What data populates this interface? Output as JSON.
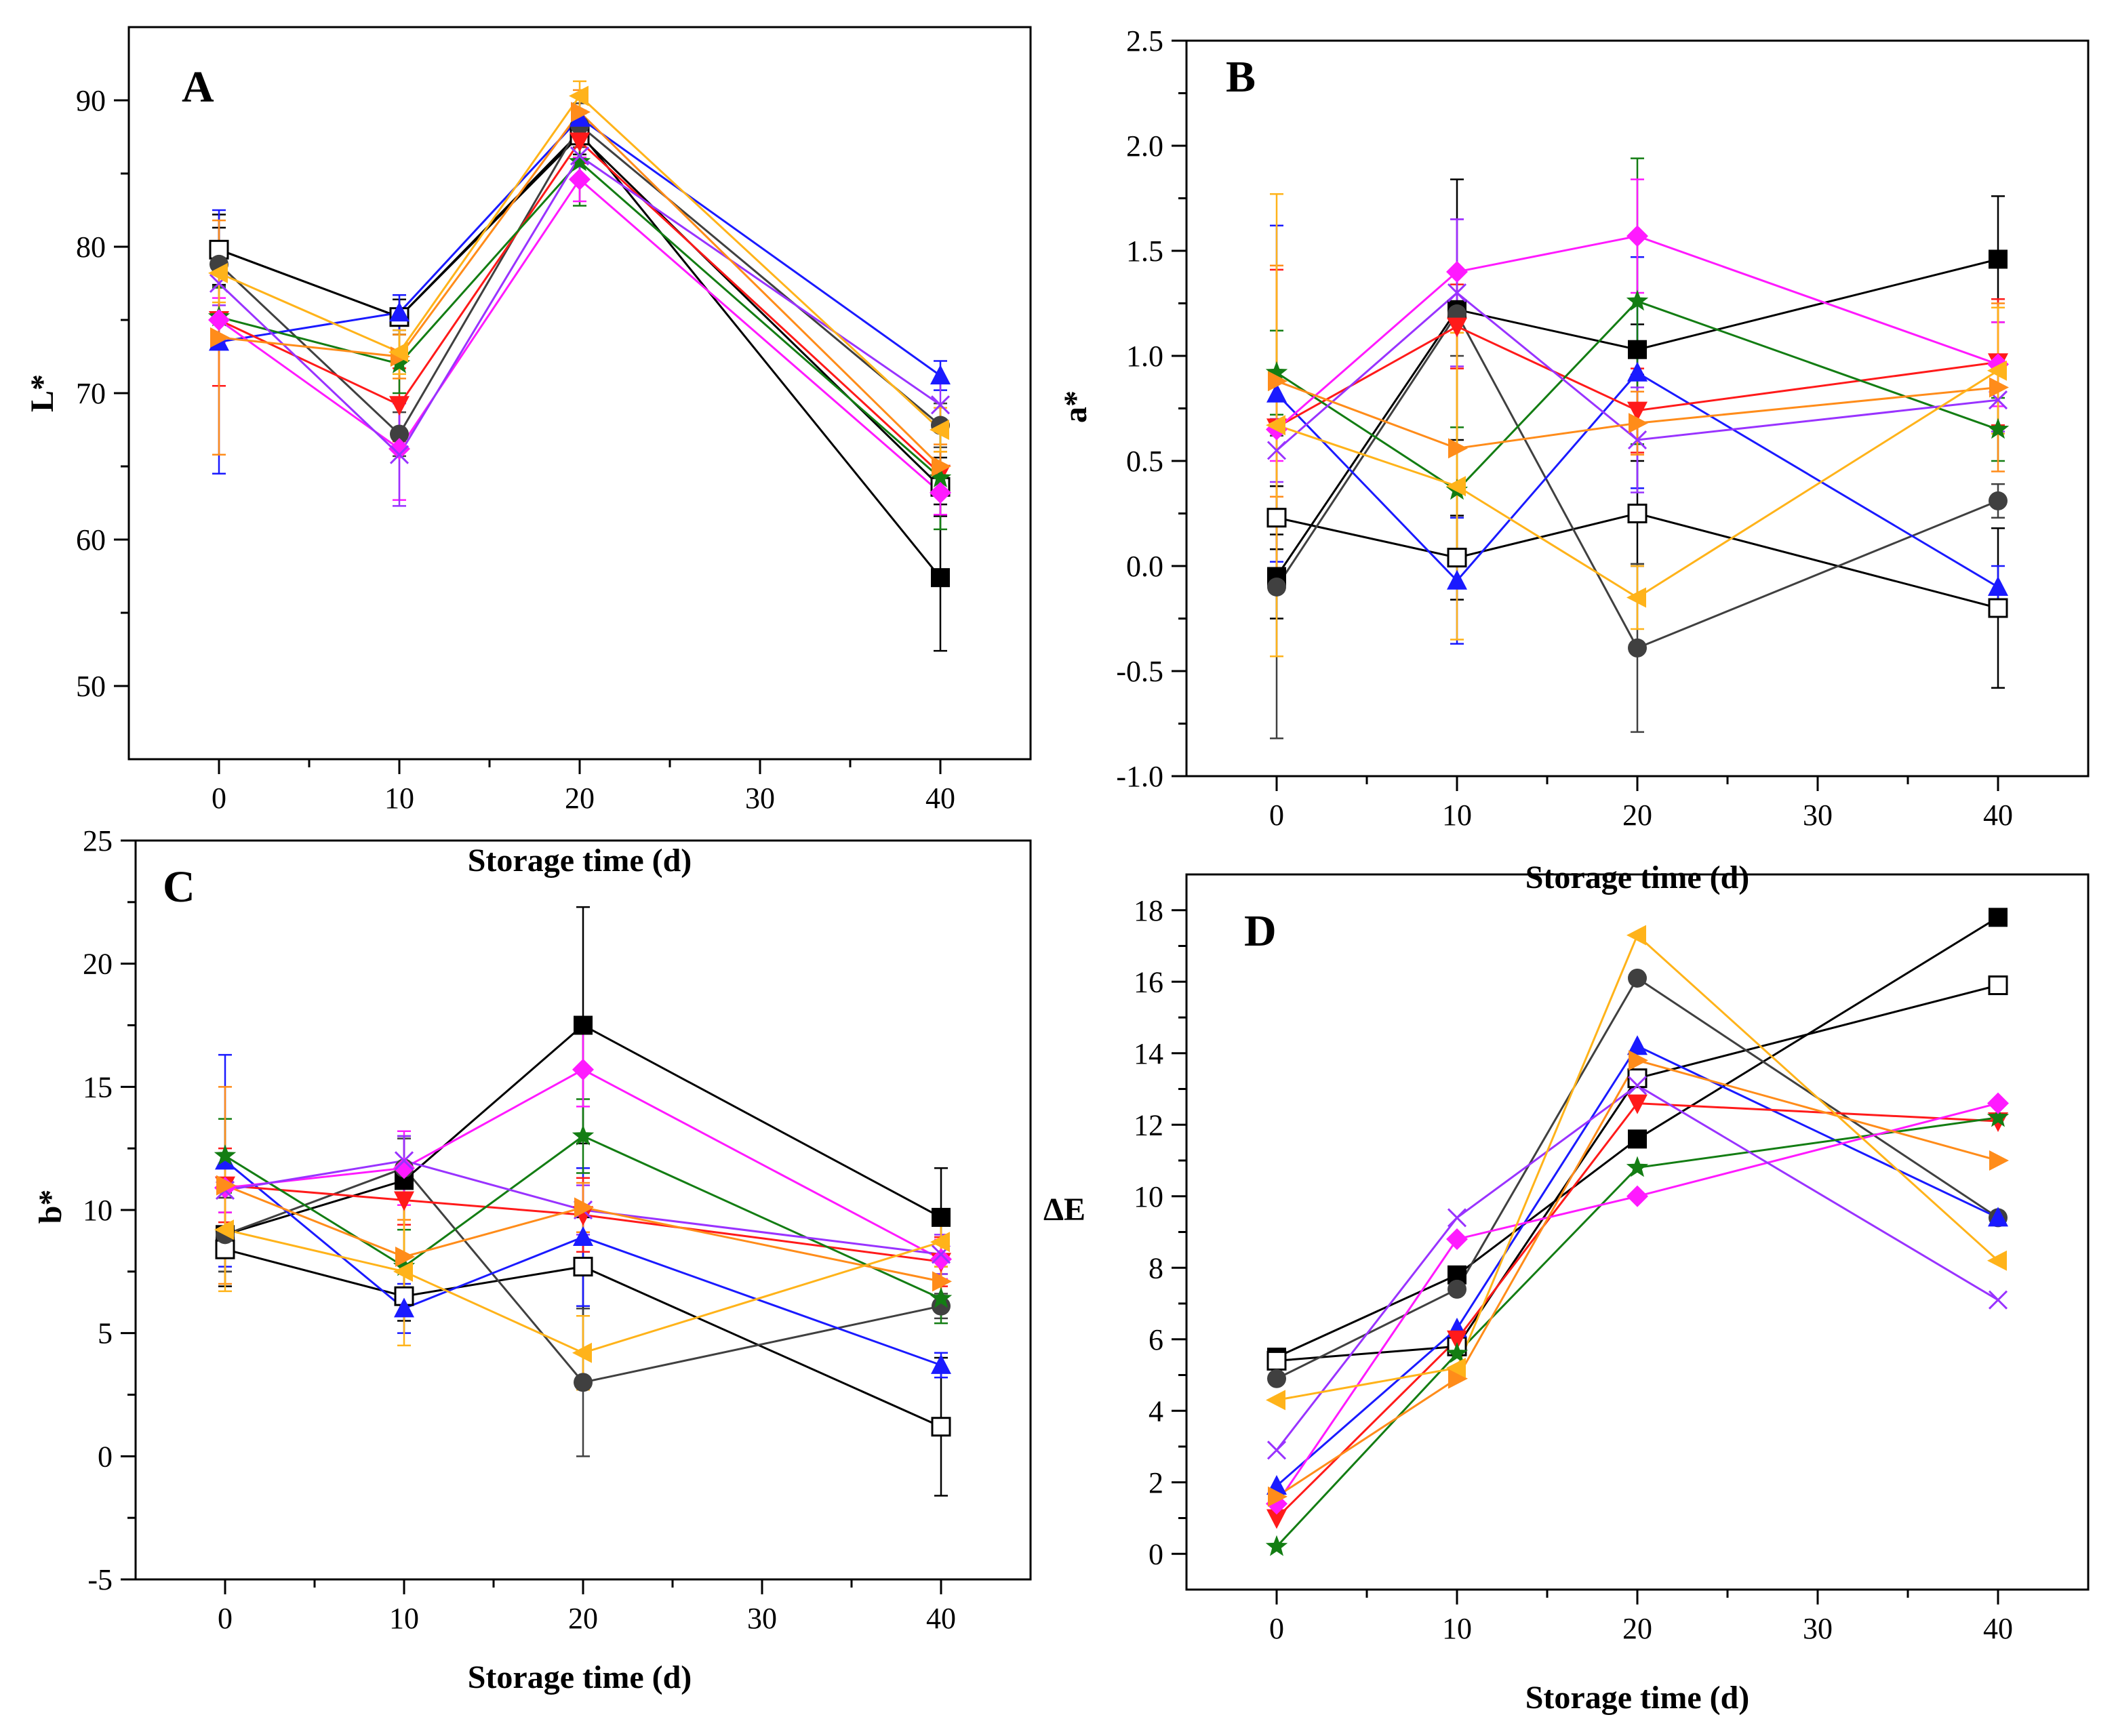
{
  "figure": {
    "colors": {
      "black": "#000000",
      "blue": "#1a1aff",
      "red": "#ff1a1a",
      "green": "#137d13",
      "orange": "#ff8c1a",
      "gold": "#ffb31a",
      "magenta": "#ff1aff",
      "purple": "#9933ff",
      "darkgray": "#404040"
    }
  },
  "chart_data": [
    {
      "panel": "A",
      "type": "line",
      "title": "",
      "xlabel": "Storage time (d)",
      "ylabel": "L*",
      "x": [
        0,
        10,
        20,
        40
      ],
      "xlim": [
        -5,
        45
      ],
      "ylim": [
        45,
        95
      ],
      "xticks": [
        "0",
        "10",
        "20",
        "30",
        "40"
      ],
      "yticks": [
        "50",
        "60",
        "70",
        "80",
        "90"
      ],
      "series": [
        {
          "name": "black-square",
          "color": "black",
          "marker": "square",
          "values": [
            79.8,
            75.2,
            87.8,
            57.4
          ],
          "errors": [
            2.4,
            1.2,
            1.5,
            5.0
          ]
        },
        {
          "name": "open-square",
          "color": "black",
          "marker": "open-square",
          "values": [
            79.8,
            75.2,
            87.6,
            63.6
          ],
          "errors": [
            1.5,
            1.2,
            1.5,
            2.0
          ]
        },
        {
          "name": "dark-circle",
          "color": "darkgray",
          "marker": "circle",
          "values": [
            78.8,
            67.2,
            88.3,
            67.8
          ],
          "errors": [
            1.5,
            1.5,
            1.5,
            1.5
          ]
        },
        {
          "name": "blue-triangle",
          "color": "blue",
          "marker": "triangle",
          "values": [
            73.5,
            75.5,
            88.8,
            71.2
          ],
          "errors": [
            9.0,
            1.2,
            1.5,
            1.0
          ]
        },
        {
          "name": "red-triangle-down",
          "color": "red",
          "marker": "triangle-down",
          "values": [
            75.0,
            69.2,
            87.2,
            64.5
          ],
          "errors": [
            4.5,
            2.5,
            1.5,
            1.5
          ]
        },
        {
          "name": "green-star",
          "color": "green",
          "marker": "star",
          "values": [
            75.2,
            72.0,
            85.8,
            64.2
          ],
          "errors": [
            2.0,
            2.0,
            3.0,
            3.5
          ]
        },
        {
          "name": "magenta-diamond",
          "color": "magenta",
          "marker": "diamond",
          "values": [
            75.0,
            66.2,
            84.6,
            63.2
          ],
          "errors": [
            1.5,
            3.5,
            1.5,
            1.5
          ]
        },
        {
          "name": "purple-cross",
          "color": "purple",
          "marker": "x",
          "values": [
            77.5,
            65.8,
            86.2,
            69.2
          ],
          "errors": [
            1.5,
            3.5,
            1.5,
            1.5
          ]
        },
        {
          "name": "orange-triangle-right",
          "color": "orange",
          "marker": "triangle-right",
          "values": [
            73.8,
            72.5,
            89.2,
            65.0
          ],
          "errors": [
            8.0,
            1.5,
            1.5,
            1.5
          ]
        },
        {
          "name": "gold-triangle-left",
          "color": "gold",
          "marker": "triangle-left",
          "values": [
            78.2,
            72.8,
            90.3,
            67.5
          ],
          "errors": [
            2.0,
            1.5,
            1.0,
            1.5
          ]
        }
      ]
    },
    {
      "panel": "B",
      "type": "line",
      "title": "",
      "xlabel": "Storage time (d)",
      "ylabel": "a*",
      "x": [
        0,
        10,
        20,
        40
      ],
      "xlim": [
        -5,
        45
      ],
      "ylim": [
        -1.0,
        2.5
      ],
      "xticks": [
        "0",
        "10",
        "20",
        "30",
        "40"
      ],
      "yticks": [
        "-1.0",
        "-0.5",
        "0.0",
        "0.5",
        "1.0",
        "1.5",
        "2.0",
        "2.5"
      ],
      "series": [
        {
          "name": "black-square",
          "color": "black",
          "marker": "square",
          "values": [
            -0.05,
            1.22,
            1.03,
            1.46
          ],
          "errors": [
            0.2,
            0.62,
            0.12,
            0.3
          ]
        },
        {
          "name": "open-square",
          "color": "black",
          "marker": "open-square",
          "values": [
            0.23,
            0.04,
            0.25,
            -0.2
          ],
          "errors": [
            0.15,
            0.2,
            0.25,
            0.38
          ]
        },
        {
          "name": "dark-circle",
          "color": "darkgray",
          "marker": "circle",
          "values": [
            -0.1,
            1.2,
            -0.39,
            0.31
          ],
          "errors": [
            0.72,
            0.2,
            0.4,
            0.08
          ]
        },
        {
          "name": "blue-triangle",
          "color": "blue",
          "marker": "triangle",
          "values": [
            0.82,
            -0.07,
            0.92,
            -0.1
          ],
          "errors": [
            0.8,
            0.3,
            0.55,
            0.1
          ]
        },
        {
          "name": "red-triangle-down",
          "color": "red",
          "marker": "triangle-down",
          "values": [
            0.66,
            1.14,
            0.74,
            0.97
          ],
          "errors": [
            0.75,
            0.2,
            0.2,
            0.3
          ]
        },
        {
          "name": "green-star",
          "color": "green",
          "marker": "star",
          "values": [
            0.92,
            0.36,
            1.26,
            0.65
          ],
          "errors": [
            0.2,
            0.3,
            0.68,
            0.15
          ]
        },
        {
          "name": "magenta-diamond",
          "color": "magenta",
          "marker": "diamond",
          "values": [
            0.65,
            1.4,
            1.57,
            0.96
          ],
          "errors": [
            0.15,
            0.25,
            0.27,
            0.2
          ]
        },
        {
          "name": "purple-cross",
          "color": "purple",
          "marker": "x",
          "values": [
            0.55,
            1.3,
            0.6,
            0.79
          ],
          "errors": [
            0.15,
            0.35,
            0.25,
            0.15
          ]
        },
        {
          "name": "orange-triangle-right",
          "color": "orange",
          "marker": "triangle-right",
          "values": [
            0.88,
            0.56,
            0.68,
            0.85
          ],
          "errors": [
            0.55,
            0.55,
            0.15,
            0.4
          ]
        },
        {
          "name": "gold-triangle-left",
          "color": "gold",
          "marker": "triangle-left",
          "values": [
            0.67,
            0.38,
            -0.15,
            0.93
          ],
          "errors": [
            1.1,
            0.73,
            0.15,
            0.3
          ]
        }
      ]
    },
    {
      "panel": "C",
      "type": "line",
      "title": "",
      "xlabel": "Storage time (d)",
      "ylabel": "b*",
      "x": [
        0,
        10,
        20,
        40
      ],
      "xlim": [
        -5,
        45
      ],
      "ylim": [
        -5,
        25
      ],
      "xticks": [
        "0",
        "10",
        "20",
        "30",
        "40"
      ],
      "yticks": [
        "-5",
        "0",
        "5",
        "10",
        "15",
        "20",
        "25"
      ],
      "series": [
        {
          "name": "black-square",
          "color": "black",
          "marker": "square",
          "values": [
            9.0,
            11.2,
            17.5,
            9.7
          ],
          "errors": [
            1.5,
            1.8,
            4.8,
            2.0
          ]
        },
        {
          "name": "open-square",
          "color": "black",
          "marker": "open-square",
          "values": [
            8.4,
            6.5,
            7.7,
            1.2
          ],
          "errors": [
            1.5,
            1.0,
            2.0,
            2.8
          ]
        },
        {
          "name": "dark-circle",
          "color": "darkgray",
          "marker": "circle",
          "values": [
            9.0,
            11.7,
            3.0,
            6.1
          ],
          "errors": [
            1.5,
            1.2,
            3.0,
            0.5
          ]
        },
        {
          "name": "blue-triangle",
          "color": "blue",
          "marker": "triangle",
          "values": [
            12.0,
            6.0,
            8.9,
            3.7
          ],
          "errors": [
            4.3,
            1.0,
            2.8,
            0.5
          ]
        },
        {
          "name": "red-triangle-down",
          "color": "red",
          "marker": "triangle-down",
          "values": [
            11.0,
            10.4,
            9.8,
            7.9
          ],
          "errors": [
            1.5,
            1.0,
            1.5,
            1.0
          ]
        },
        {
          "name": "green-star",
          "color": "green",
          "marker": "star",
          "values": [
            12.2,
            7.7,
            13.0,
            6.4
          ],
          "errors": [
            1.5,
            1.5,
            1.5,
            1.0
          ]
        },
        {
          "name": "magenta-diamond",
          "color": "magenta",
          "marker": "diamond",
          "values": [
            10.9,
            11.7,
            15.7,
            8.0
          ],
          "errors": [
            1.0,
            1.5,
            1.5,
            0.8
          ]
        },
        {
          "name": "purple-cross",
          "color": "purple",
          "marker": "x",
          "values": [
            10.8,
            12.0,
            10.0,
            8.2
          ],
          "errors": [
            1.5,
            1.0,
            1.0,
            0.8
          ]
        },
        {
          "name": "orange-triangle-right",
          "color": "orange",
          "marker": "triangle-right",
          "values": [
            11.0,
            8.1,
            10.1,
            7.1
          ],
          "errors": [
            4.0,
            1.5,
            1.0,
            0.8
          ]
        },
        {
          "name": "gold-triangle-left",
          "color": "gold",
          "marker": "triangle-left",
          "values": [
            9.2,
            7.5,
            4.2,
            8.7
          ],
          "errors": [
            2.5,
            3.0,
            1.5,
            1.0
          ]
        }
      ]
    },
    {
      "panel": "D",
      "type": "line",
      "title": "",
      "xlabel": "Storage time (d)",
      "ylabel": "ΔE",
      "x": [
        0,
        10,
        20,
        40
      ],
      "xlim": [
        -5,
        45
      ],
      "ylim": [
        -1,
        19
      ],
      "xticks": [
        "0",
        "10",
        "20",
        "30",
        "40"
      ],
      "yticks": [
        "0",
        "2",
        "4",
        "6",
        "8",
        "10",
        "12",
        "14",
        "16",
        "18"
      ],
      "series": [
        {
          "name": "black-square",
          "color": "black",
          "marker": "square",
          "values": [
            5.5,
            7.8,
            11.6,
            17.8
          ]
        },
        {
          "name": "open-square",
          "color": "black",
          "marker": "open-square",
          "values": [
            5.4,
            5.8,
            13.3,
            15.9
          ]
        },
        {
          "name": "dark-circle",
          "color": "darkgray",
          "marker": "circle",
          "values": [
            4.9,
            7.4,
            16.1,
            9.4
          ]
        },
        {
          "name": "blue-triangle",
          "color": "blue",
          "marker": "triangle",
          "values": [
            1.9,
            6.3,
            14.2,
            9.4
          ]
        },
        {
          "name": "red-triangle-down",
          "color": "red",
          "marker": "triangle-down",
          "values": [
            1.0,
            6.0,
            12.6,
            12.1
          ]
        },
        {
          "name": "green-star",
          "color": "green",
          "marker": "star",
          "values": [
            0.2,
            5.6,
            10.8,
            12.2
          ]
        },
        {
          "name": "magenta-diamond",
          "color": "magenta",
          "marker": "diamond",
          "values": [
            1.4,
            8.8,
            10.0,
            12.6
          ]
        },
        {
          "name": "purple-cross",
          "color": "purple",
          "marker": "x",
          "values": [
            2.9,
            9.4,
            13.1,
            7.1
          ]
        },
        {
          "name": "orange-triangle-right",
          "color": "orange",
          "marker": "triangle-right",
          "values": [
            1.6,
            4.9,
            13.8,
            11.0
          ]
        },
        {
          "name": "gold-triangle-left",
          "color": "gold",
          "marker": "triangle-left",
          "values": [
            4.3,
            5.2,
            17.3,
            8.2
          ]
        }
      ]
    }
  ]
}
